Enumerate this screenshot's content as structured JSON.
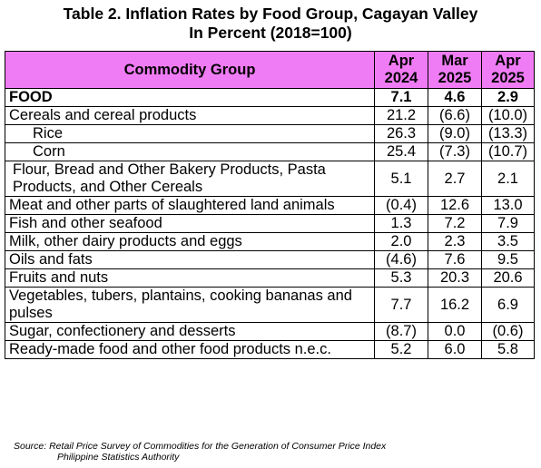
{
  "title": {
    "line1": "Table 2. Inflation Rates by Food Group, Cagayan Valley",
    "line2": "In Percent (2018=100)"
  },
  "table": {
    "headers": {
      "group": "Commodity Group",
      "col1": [
        "Apr",
        "2024"
      ],
      "col2": [
        "Mar",
        "2025"
      ],
      "col3": [
        "Apr",
        "2025"
      ]
    },
    "rows": [
      {
        "label": "FOOD",
        "values": [
          "7.1",
          "4.6",
          "2.9"
        ]
      },
      {
        "label": "Cereals and cereal products",
        "values": [
          "21.2",
          "(6.6)",
          "(10.0)"
        ]
      },
      {
        "label": "Rice",
        "values": [
          "26.3",
          "(9.0)",
          "(13.3)"
        ]
      },
      {
        "label": "Corn",
        "values": [
          "25.4",
          "(7.3)",
          "(10.7)"
        ]
      },
      {
        "label": "Flour, Bread and Other Bakery Products, Pasta Products, and Other Cereals",
        "values": [
          "5.1",
          "2.7",
          "2.1"
        ]
      },
      {
        "label": "Meat and other parts of slaughtered land animals",
        "values": [
          "(0.4)",
          "12.6",
          "13.0"
        ]
      },
      {
        "label": "Fish and other seafood",
        "values": [
          "1.3",
          "7.2",
          "7.9"
        ]
      },
      {
        "label": "Milk, other dairy products and eggs",
        "values": [
          "2.0",
          "2.3",
          "3.5"
        ]
      },
      {
        "label": "Oils and fats",
        "values": [
          "(4.6)",
          "7.6",
          "9.5"
        ]
      },
      {
        "label": "Fruits and nuts",
        "values": [
          "5.3",
          "20.3",
          "20.6"
        ]
      },
      {
        "label": "Vegetables, tubers, plantains, cooking bananas and pulses",
        "values": [
          "7.7",
          "16.2",
          "6.9"
        ]
      },
      {
        "label": "Sugar, confectionery and desserts",
        "values": [
          "(8.7)",
          "0.0",
          "(0.6)"
        ]
      },
      {
        "label": "Ready-made food and other food products n.e.c.",
        "values": [
          "5.2",
          "6.0",
          "5.8"
        ]
      }
    ]
  },
  "source": {
    "line1": "Source: Retail Price Survey of Commodities for the Generation of Consumer Price Index",
    "line2": "Philippine Statistics Authority"
  },
  "colors": {
    "header_bg": "#f07cf5"
  }
}
